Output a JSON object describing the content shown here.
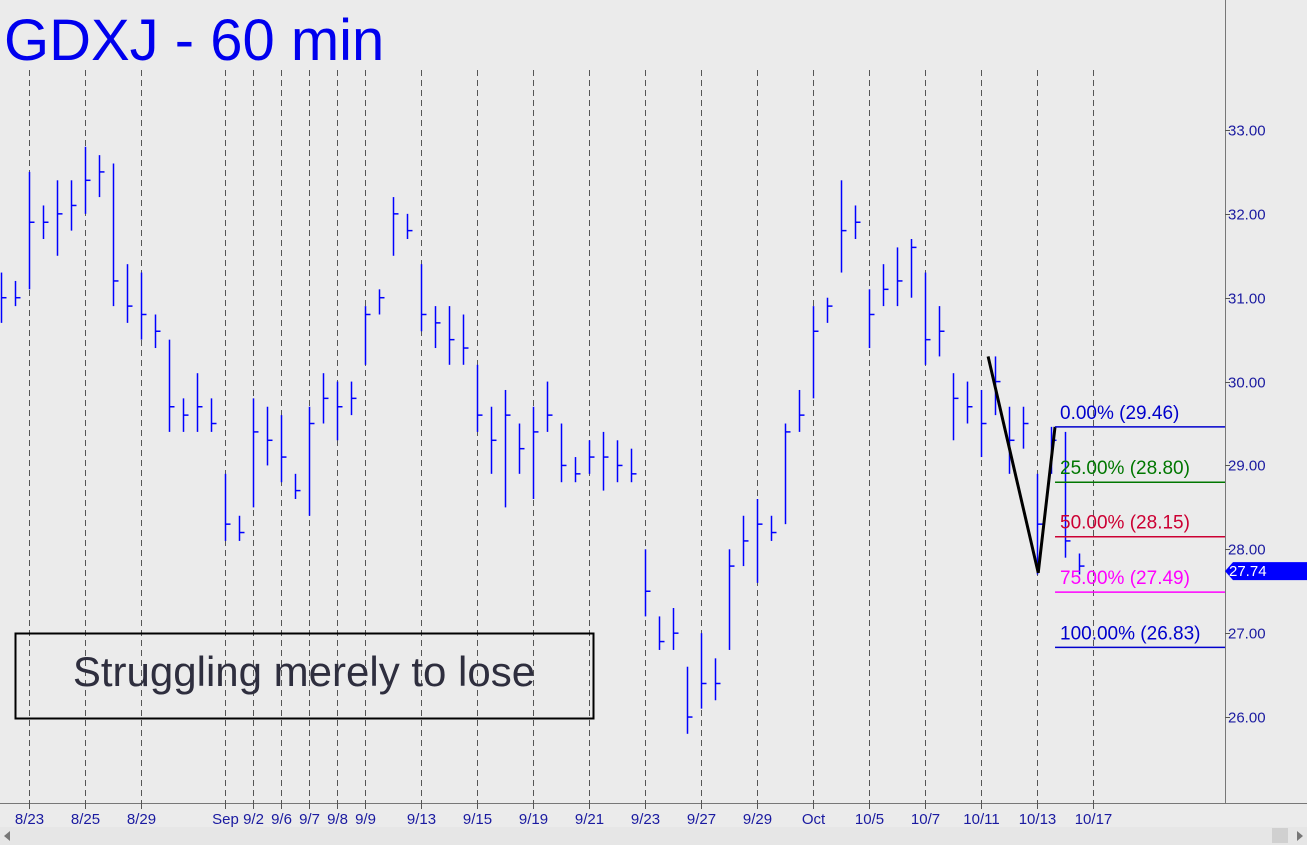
{
  "chart_data": {
    "type": "ohlc",
    "title": "GDXJ - 60 min",
    "color": "#0000ff",
    "x": [
      -1,
      -0.5,
      0,
      0.5,
      1,
      1.5,
      2,
      2.5,
      3,
      3.5,
      4,
      4.5,
      5,
      5.5,
      6,
      6.5,
      7,
      7.5,
      8,
      8.5,
      9,
      9.5,
      10,
      10.5,
      11,
      11.5,
      12,
      12.5,
      13,
      13.5,
      14,
      14.5,
      15,
      15.5,
      16,
      16.5,
      17,
      17.5,
      18,
      18.5,
      19,
      19.5,
      20,
      20.5,
      21,
      21.5,
      22,
      22.5,
      23,
      23.5,
      24,
      24.5,
      25,
      25.5,
      26,
      26.5,
      27,
      27.5,
      28,
      28.5,
      29,
      29.5,
      30,
      30.5,
      31,
      31.5,
      32,
      32.5,
      33,
      33.5,
      34,
      34.5,
      35,
      35.5,
      36,
      36.5,
      37,
      37.5
    ],
    "high": [
      31.3,
      31.2,
      32.5,
      32.1,
      32.4,
      32.4,
      32.8,
      32.7,
      32.6,
      31.4,
      31.3,
      30.8,
      30.5,
      29.8,
      30.1,
      29.8,
      28.9,
      28.4,
      29.8,
      29.7,
      29.6,
      28.9,
      29.7,
      30.1,
      30.0,
      30.0,
      30.9,
      31.1,
      32.2,
      32.0,
      31.4,
      30.9,
      30.9,
      30.8,
      30.2,
      29.7,
      29.9,
      29.5,
      29.7,
      30.0,
      29.5,
      29.1,
      29.3,
      29.4,
      29.3,
      29.2,
      28.0,
      27.2,
      27.3,
      26.6,
      27.0,
      26.7,
      28.0,
      28.4,
      28.6,
      28.4,
      29.5,
      29.9,
      30.9,
      31.0,
      32.4,
      32.1,
      31.1,
      31.4,
      31.6,
      31.7,
      31.3,
      30.9,
      30.1,
      30.0,
      29.9,
      30.3,
      29.7,
      29.7,
      28.9,
      29.46,
      29.4,
      27.95
    ],
    "low": [
      30.7,
      30.9,
      31.1,
      31.7,
      31.5,
      31.8,
      32.0,
      32.2,
      30.9,
      30.7,
      30.5,
      30.4,
      29.4,
      29.4,
      29.4,
      29.4,
      28.1,
      28.1,
      28.5,
      29.0,
      28.8,
      28.6,
      28.4,
      29.5,
      29.3,
      29.6,
      30.2,
      30.8,
      31.5,
      31.7,
      30.6,
      30.4,
      30.2,
      30.2,
      29.4,
      28.9,
      28.5,
      28.9,
      28.6,
      29.4,
      28.8,
      28.8,
      28.9,
      28.7,
      28.8,
      28.8,
      27.2,
      26.8,
      26.8,
      25.8,
      26.1,
      26.2,
      26.8,
      27.8,
      27.6,
      28.1,
      28.3,
      29.4,
      29.8,
      30.7,
      31.3,
      31.7,
      30.4,
      30.9,
      30.9,
      31.0,
      30.2,
      30.3,
      29.3,
      29.5,
      29.1,
      29.6,
      28.9,
      29.2,
      27.7,
      28.9,
      27.9,
      27.7
    ],
    "close": [
      31.0,
      31.0,
      31.9,
      31.9,
      32.0,
      32.1,
      32.4,
      32.5,
      31.2,
      30.9,
      30.8,
      30.6,
      29.7,
      29.6,
      29.7,
      29.5,
      28.3,
      28.2,
      29.4,
      29.3,
      29.1,
      28.7,
      29.5,
      29.8,
      29.7,
      29.8,
      30.8,
      31.0,
      32.0,
      31.8,
      30.8,
      30.7,
      30.5,
      30.4,
      29.6,
      29.3,
      29.6,
      29.2,
      29.4,
      29.6,
      29.0,
      28.9,
      29.1,
      29.1,
      29.0,
      28.9,
      27.5,
      26.9,
      27.0,
      26.0,
      26.4,
      26.4,
      27.8,
      28.1,
      28.3,
      28.2,
      29.4,
      29.6,
      30.6,
      30.9,
      31.8,
      31.9,
      30.8,
      31.1,
      31.2,
      31.6,
      30.5,
      30.6,
      29.8,
      29.7,
      29.5,
      30.0,
      29.3,
      29.5,
      28.3,
      29.3,
      28.1,
      27.8
    ],
    "last_price": 27.74,
    "xlim": [
      -1.036,
      42.71
    ],
    "ylim": [
      24.975,
      34.55
    ],
    "xticks": [
      {
        "value": 0,
        "label": "8/23"
      },
      {
        "value": 2,
        "label": "8/25"
      },
      {
        "value": 4,
        "label": "8/29"
      },
      {
        "value": 7,
        "label": "Sep"
      },
      {
        "value": 8,
        "label": "9/2"
      },
      {
        "value": 9,
        "label": "9/6"
      },
      {
        "value": 10,
        "label": "9/7"
      },
      {
        "value": 11,
        "label": "9/8"
      },
      {
        "value": 12,
        "label": "9/9"
      },
      {
        "value": 14,
        "label": "9/13"
      },
      {
        "value": 16,
        "label": "9/15"
      },
      {
        "value": 18,
        "label": "9/19"
      },
      {
        "value": 20,
        "label": "9/21"
      },
      {
        "value": 22,
        "label": "9/23"
      },
      {
        "value": 24,
        "label": "9/27"
      },
      {
        "value": 26,
        "label": "9/29"
      },
      {
        "value": 28,
        "label": "Oct"
      },
      {
        "value": 30,
        "label": "10/5"
      },
      {
        "value": 32,
        "label": "10/7"
      },
      {
        "value": 34,
        "label": "10/11"
      },
      {
        "value": 36,
        "label": "10/13"
      },
      {
        "value": 38,
        "label": "10/17"
      }
    ],
    "yticks": [
      {
        "value": 26,
        "label": "26.00"
      },
      {
        "value": 27,
        "label": "27.00"
      },
      {
        "value": 28,
        "label": "28.00"
      },
      {
        "value": 29,
        "label": "29.00"
      },
      {
        "value": 30,
        "label": "30.00"
      },
      {
        "value": 31,
        "label": "31.00"
      },
      {
        "value": 32,
        "label": "32.00"
      },
      {
        "value": 33,
        "label": "33.00"
      }
    ],
    "pattern": {
      "x": [
        34.25,
        36.04,
        36.64
      ],
      "y": [
        30.3,
        27.72,
        29.46
      ]
    },
    "fib_levels": [
      {
        "label": "0.00% (29.46)",
        "value": 29.46,
        "color": "#0000cc"
      },
      {
        "label": "25.00% (28.80)",
        "value": 28.8,
        "color": "#007700"
      },
      {
        "label": "50.00% (28.15)",
        "value": 28.15,
        "color": "#cc0033"
      },
      {
        "label": "75.00% (27.49)",
        "value": 27.49,
        "color": "#ff00ff"
      },
      {
        "label": "100.00% (26.83)",
        "value": 26.83,
        "color": "#0000cc"
      }
    ],
    "annotation": "Struggling merely to lose"
  }
}
